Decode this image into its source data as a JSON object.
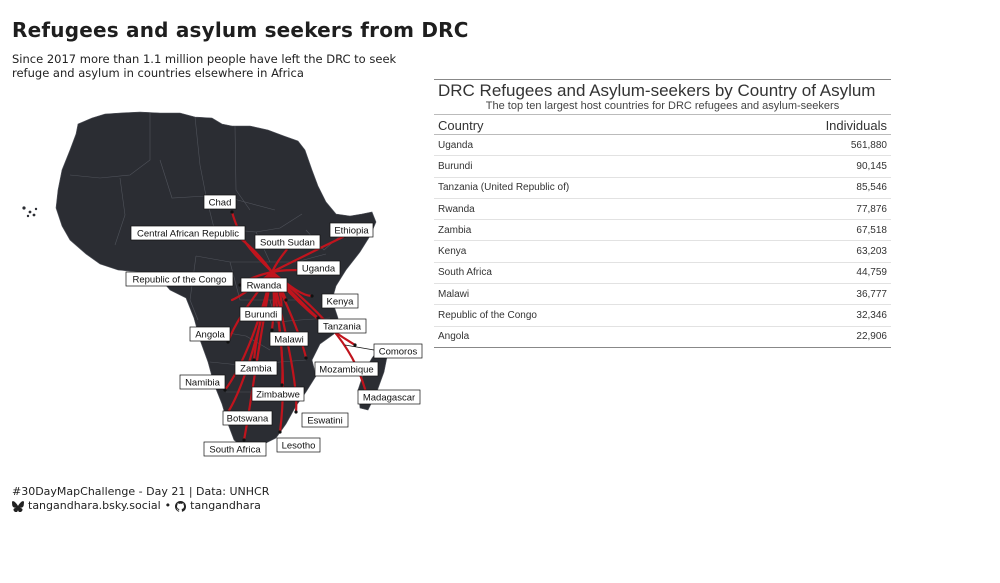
{
  "header": {
    "title": "Refugees and asylum seekers from DRC",
    "subtitle": "Since 2017 more than 1.1 million people have left the DRC to seek refuge and asylum in countries elsewhere in Africa"
  },
  "map": {
    "land_color": "#2b2d33",
    "flow_color": "#c0141d",
    "labels": {
      "chad": "Chad",
      "car": "Central African Republic",
      "south_sudan": "South Sudan",
      "ethiopia": "Ethiopia",
      "uganda": "Uganda",
      "roc": "Republic of the Congo",
      "rwanda": "Rwanda",
      "kenya": "Kenya",
      "burundi": "Burundi",
      "tanzania": "Tanzania",
      "angola": "Angola",
      "malawi": "Malawi",
      "comoros": "Comoros",
      "zambia": "Zambia",
      "mozambique": "Mozambique",
      "namibia": "Namibia",
      "zimbabwe": "Zimbabwe",
      "madagascar": "Madagascar",
      "botswana": "Botswana",
      "eswatini": "Eswatini",
      "lesotho": "Lesotho",
      "south_africa": "South Africa"
    }
  },
  "table": {
    "title": "DRC Refugees and Asylum-seekers by Country of Asylum",
    "subtitle": "The top ten largest host countries for DRC refugees and asylum-seekers",
    "col_country": "Country",
    "col_individuals": "Individuals",
    "rows": [
      {
        "country": "Uganda",
        "individuals": "561,880"
      },
      {
        "country": "Burundi",
        "individuals": "90,145"
      },
      {
        "country": "Tanzania (United Republic of)",
        "individuals": "85,546"
      },
      {
        "country": "Rwanda",
        "individuals": "77,876"
      },
      {
        "country": "Zambia",
        "individuals": "67,518"
      },
      {
        "country": "Kenya",
        "individuals": "63,203"
      },
      {
        "country": "South Africa",
        "individuals": "44,759"
      },
      {
        "country": "Malawi",
        "individuals": "36,777"
      },
      {
        "country": "Republic of the Congo",
        "individuals": "32,346"
      },
      {
        "country": "Angola",
        "individuals": "22,906"
      }
    ]
  },
  "footer": {
    "credit": "#30DayMapChallenge - Day 21 | Data: UNHCR",
    "bluesky_icon": "butterfly-icon",
    "bluesky": "tangandhara.bsky.social",
    "separator": "•",
    "github_icon": "github-icon",
    "github": "tangandhara"
  }
}
